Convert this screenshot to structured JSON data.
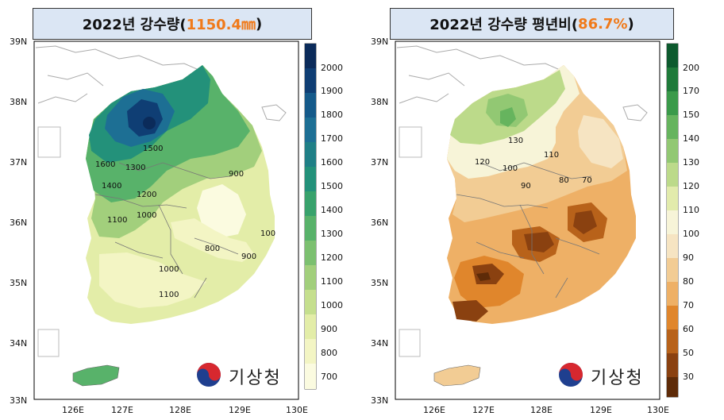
{
  "left": {
    "title_prefix": "2022년 강수량(",
    "title_highlight": "1150.4㎜",
    "title_suffix": ")",
    "colorbar_ticks": [
      "2000",
      "1900",
      "1800",
      "1700",
      "1600",
      "1500",
      "1400",
      "1300",
      "1200",
      "1100",
      "1000",
      "900",
      "800",
      "700"
    ],
    "colorbar_colors": [
      "#0b2b5a",
      "#0f3e74",
      "#155a8a",
      "#1d6f94",
      "#1f7f86",
      "#23917a",
      "#38a26c",
      "#58b26a",
      "#7cc070",
      "#a2cf7c",
      "#c5df8e",
      "#e3eda8",
      "#f3f5c4",
      "#fbfbe0"
    ],
    "contour_labels": [
      "1500",
      "1600",
      "1300",
      "1400",
      "1200",
      "1000",
      "1100",
      "900",
      "800",
      "900",
      "1000",
      "1100",
      "100"
    ],
    "logo_text": "기상청"
  },
  "right": {
    "title_prefix": "2022년 강수량 평년비(",
    "title_highlight": "86.7% ",
    "title_suffix": ")",
    "colorbar_ticks": [
      "200",
      "170",
      "150",
      "140",
      "130",
      "120",
      "110",
      "100",
      "90",
      "80",
      "70",
      "60",
      "50",
      "30"
    ],
    "colorbar_colors": [
      "#0d5a2e",
      "#1f7a3a",
      "#3a9a4a",
      "#66b45e",
      "#92c873",
      "#bcda8a",
      "#e2ebac",
      "#f7f4d8",
      "#f6e4c2",
      "#f2cc94",
      "#eeb066",
      "#e0862c",
      "#b8621a",
      "#8a4110",
      "#5e2b08"
    ],
    "contour_labels": [
      "130",
      "110",
      "120",
      "100",
      "90",
      "80",
      "70"
    ],
    "logo_text": "기상청"
  },
  "axes": {
    "x_ticks": [
      "126E",
      "127E",
      "128E",
      "129E",
      "130E"
    ],
    "y_ticks": [
      "39N",
      "38N",
      "37N",
      "36N",
      "35N",
      "34N",
      "33N"
    ]
  }
}
